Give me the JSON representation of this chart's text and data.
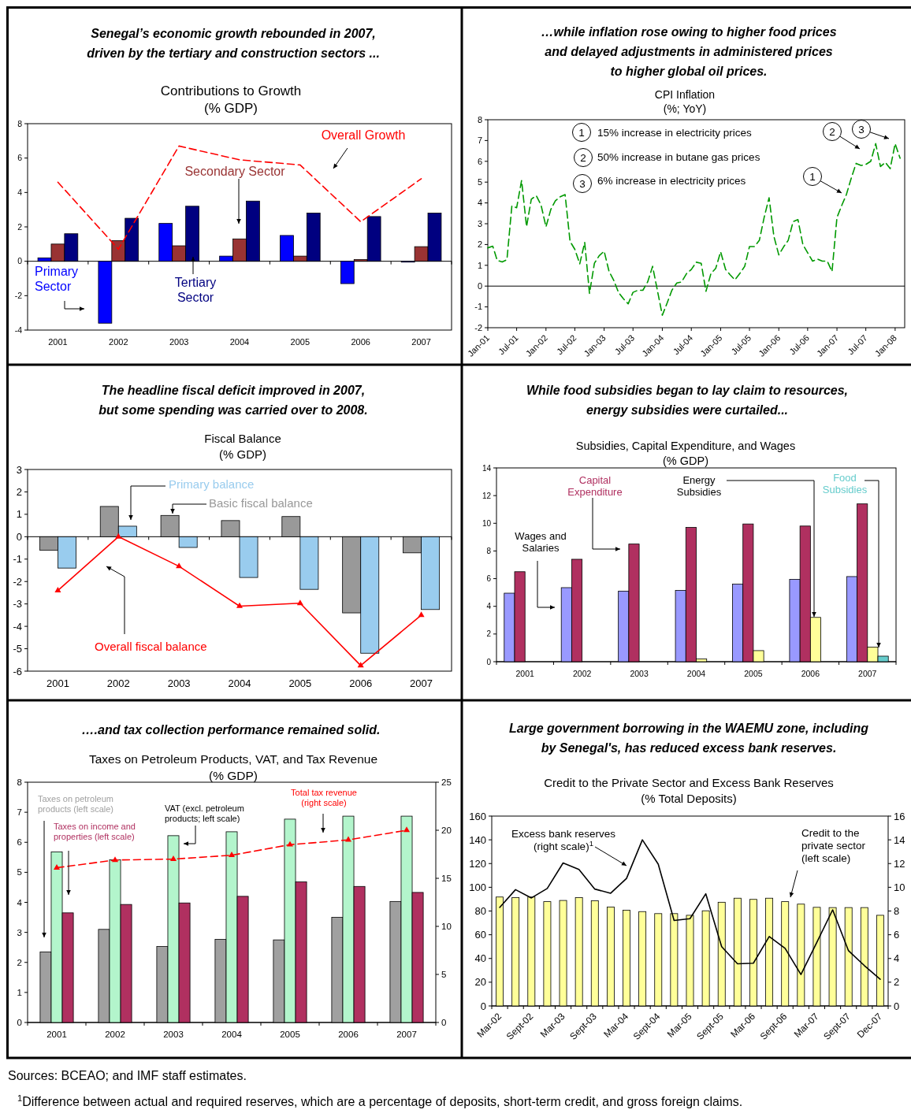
{
  "chart_data": [
    {
      "type": "bar",
      "title": "Senegal’s economic growth rebounded in 2007,\ndriven by the tertiary and construction sectors ...",
      "subtitle": "Contributions to Growth\n(% GDP)",
      "categories": [
        "2001",
        "2002",
        "2003",
        "2004",
        "2005",
        "2006",
        "2007"
      ],
      "ylim": [
        -4,
        8
      ],
      "yticks": [
        -4,
        -2,
        0,
        2,
        4,
        6,
        8
      ],
      "line_style": "dashed",
      "legend": "bottom left",
      "series": [
        {
          "name": "Primary\nSector",
          "color": "#0000ff",
          "values": [
            0.2,
            -3.6,
            2.2,
            0.3,
            1.5,
            -1.3,
            -0.05
          ]
        },
        {
          "name": "Secondary Sector",
          "color": "#993333",
          "values": [
            1.0,
            1.2,
            0.9,
            1.3,
            0.3,
            0.1,
            0.85
          ]
        },
        {
          "name": "Tertiary\nSector",
          "color": "#000080",
          "values": [
            1.6,
            2.5,
            3.2,
            3.5,
            2.8,
            2.6,
            2.8
          ]
        },
        {
          "name": "Overall Growth",
          "type": "line",
          "color": "#ff0000",
          "values": [
            4.6,
            0.7,
            6.7,
            5.9,
            5.6,
            2.3,
            4.8
          ]
        }
      ]
    },
    {
      "type": "line",
      "title": "…while inflation rose owing to higher food prices\nand delayed adjustments in administered prices\nto higher global oil prices.",
      "subtitle": "CPI Inflation\n(%; YoY)",
      "line_style": "dashed",
      "xlim": [
        "2001-01",
        "2008-03"
      ],
      "ylim": [
        -2,
        8
      ],
      "yticks": [
        -2,
        -1,
        0,
        1,
        2,
        3,
        4,
        5,
        6,
        7,
        8
      ],
      "xticks": [
        {
          "value": "2001-01",
          "label": "Jan-01"
        },
        {
          "value": "2001-07",
          "label": "Jul-01"
        },
        {
          "value": "2002-01",
          "label": "Jan-02"
        },
        {
          "value": "2002-07",
          "label": "Jul-02"
        },
        {
          "value": "2003-01",
          "label": "Jan-03"
        },
        {
          "value": "2003-07",
          "label": "Jul-03"
        },
        {
          "value": "2004-01",
          "label": "Jan-04"
        },
        {
          "value": "2004-07",
          "label": "Jul-04"
        },
        {
          "value": "2005-01",
          "label": "Jan-05"
        },
        {
          "value": "2005-07",
          "label": "Jul-05"
        },
        {
          "value": "2006-01",
          "label": "Jan-06"
        },
        {
          "value": "2006-07",
          "label": "Jul-06"
        },
        {
          "value": "2007-01",
          "label": "Jan-07"
        },
        {
          "value": "2007-07",
          "label": "Jul-07"
        },
        {
          "value": "2008-01",
          "label": "Jan-08"
        }
      ],
      "x": [
        "2001-01",
        "2001-02",
        "2001-03",
        "2001-04",
        "2001-05",
        "2001-06",
        "2001-07",
        "2001-08",
        "2001-09",
        "2001-10",
        "2001-11",
        "2001-12",
        "2002-01",
        "2002-02",
        "2002-03",
        "2002-04",
        "2002-05",
        "2002-06",
        "2002-07",
        "2002-08",
        "2002-09",
        "2002-10",
        "2002-11",
        "2002-12",
        "2003-01",
        "2003-02",
        "2003-03",
        "2003-04",
        "2003-05",
        "2003-06",
        "2003-07",
        "2003-08",
        "2003-09",
        "2003-10",
        "2003-11",
        "2003-12",
        "2004-01",
        "2004-02",
        "2004-03",
        "2004-04",
        "2004-05",
        "2004-06",
        "2004-07",
        "2004-08",
        "2004-09",
        "2004-10",
        "2004-11",
        "2004-12",
        "2005-01",
        "2005-02",
        "2005-03",
        "2005-04",
        "2005-05",
        "2005-06",
        "2005-07",
        "2005-08",
        "2005-09",
        "2005-10",
        "2005-11",
        "2005-12",
        "2006-01",
        "2006-02",
        "2006-03",
        "2006-04",
        "2006-05",
        "2006-06",
        "2006-07",
        "2006-08",
        "2006-09",
        "2006-10",
        "2006-11",
        "2006-12",
        "2007-01",
        "2007-02",
        "2007-03",
        "2007-04",
        "2007-05",
        "2007-06",
        "2007-07",
        "2007-08",
        "2007-09",
        "2007-10",
        "2007-11",
        "2007-12",
        "2008-01",
        "2008-02"
      ],
      "series": [
        {
          "color": "#009900",
          "values": [
            1.84,
            1.92,
            1.24,
            1.16,
            1.27,
            3.86,
            3.77,
            5.08,
            2.86,
            4.18,
            4.35,
            3.9,
            2.85,
            3.7,
            4.1,
            4.3,
            4.4,
            2.15,
            1.77,
            1.07,
            2.1,
            -0.35,
            1.1,
            1.46,
            1.68,
            0.7,
            0.3,
            -0.3,
            -0.6,
            -0.85,
            -0.3,
            -0.2,
            -0.2,
            0.2,
            0.95,
            -0.2,
            -1.4,
            -0.8,
            -0.2,
            0.15,
            0.2,
            0.6,
            0.8,
            1.15,
            1.1,
            -0.25,
            0.6,
            0.85,
            1.65,
            0.8,
            0.55,
            0.3,
            0.6,
            0.95,
            1.9,
            1.9,
            2.2,
            3.3,
            4.25,
            2.4,
            1.5,
            1.9,
            2.2,
            3.1,
            3.2,
            2.0,
            1.6,
            1.2,
            1.3,
            1.2,
            1.2,
            0.7,
            3.3,
            3.9,
            4.4,
            5.2,
            5.9,
            5.8,
            5.85,
            6.0,
            6.85,
            5.75,
            5.95,
            5.65,
            6.85,
            6.15
          ]
        }
      ],
      "annotations": [
        "15% increase in electricity prices",
        "50% increase in butane gas prices",
        "6% increase in electricity prices",
        "1",
        "2",
        "3"
      ]
    },
    {
      "type": "bar",
      "title": "The headline fiscal deficit improved in 2007,\nbut some spending was carried over to 2008.",
      "subtitle": "Fiscal Balance\n(% GDP)",
      "categories": [
        "2001",
        "2002",
        "2003",
        "2004",
        "2005",
        "2006",
        "2007"
      ],
      "ylim": [
        -6,
        3
      ],
      "yticks": [
        -6,
        -5,
        -4,
        -3,
        -2,
        -1,
        0,
        1,
        2,
        3
      ],
      "marker": "triangle",
      "line_style": "solid",
      "series": [
        {
          "name": "Basic fiscal balance",
          "color": "#999999",
          "values": [
            -0.6,
            1.35,
            0.95,
            0.72,
            0.9,
            -3.4,
            -0.72
          ]
        },
        {
          "name": "Primary balance",
          "color": "#99ccee",
          "values": [
            -1.4,
            0.47,
            -0.48,
            -1.82,
            -2.35,
            -5.2,
            -3.25
          ]
        },
        {
          "name": "Overall fiscal balance",
          "type": "line",
          "color": "#ff0000",
          "values": [
            -2.4,
            0.0,
            -1.32,
            -3.1,
            -2.97,
            -5.75,
            -3.5
          ]
        }
      ]
    },
    {
      "type": "bar",
      "title": "While food subsidies began to lay claim to resources,\nenergy subsidies were curtailed...",
      "subtitle": "Subsidies, Capital Expenditure, and Wages\n(% GDP)",
      "categories": [
        "2001",
        "2002",
        "2003",
        "2004",
        "2005",
        "2006",
        "2007"
      ],
      "ylim": [
        0,
        14
      ],
      "yticks": [
        0,
        2,
        4,
        6,
        8,
        10,
        12,
        14
      ],
      "series": [
        {
          "name": "Wages and\nSalaries",
          "color": "#9999ff",
          "values": [
            4.95,
            5.35,
            5.1,
            5.15,
            5.6,
            5.95,
            6.15
          ]
        },
        {
          "name": "Capital\nExpenditure",
          "color": "#b03060",
          "values": [
            6.5,
            7.4,
            8.5,
            9.7,
            9.95,
            9.8,
            11.4
          ]
        },
        {
          "name": "Energy\nSubsidies",
          "color": "#ffff99",
          "values": [
            null,
            null,
            null,
            0.2,
            0.8,
            3.2,
            1.05
          ]
        },
        {
          "name": "Food\nSubsidies",
          "color": "#66cccc",
          "values": [
            null,
            null,
            null,
            null,
            null,
            null,
            0.4
          ]
        }
      ]
    },
    {
      "type": "bar",
      "title": "….and tax collection performance remained solid.",
      "subtitle": "Taxes on Petroleum Products, VAT, and Tax Revenue\n(% GDP)",
      "categories": [
        "2001",
        "2002",
        "2003",
        "2004",
        "2005",
        "2006",
        "2007"
      ],
      "ylim": [
        0,
        8
      ],
      "yticks": [
        0,
        1,
        2,
        3,
        4,
        5,
        6,
        7,
        8
      ],
      "y2lim": [
        0,
        25
      ],
      "y2ticks": [
        0,
        5,
        10,
        15,
        20,
        25
      ],
      "marker": "triangle",
      "line_style": "dashed",
      "series": [
        {
          "name": "Taxes on petroleum\nproducts (left scale)",
          "color": "#a0a0a0",
          "values": [
            2.35,
            3.1,
            2.53,
            2.77,
            2.75,
            3.5,
            4.03
          ]
        },
        {
          "name": "VAT (excl. petroleum\nproducts; left scale)",
          "color": "#b3f5cc",
          "values": [
            5.68,
            5.42,
            6.22,
            6.35,
            6.77,
            6.87,
            6.87
          ]
        },
        {
          "name": "Taxes on income and\nproperties (left scale)",
          "color": "#b03060",
          "values": [
            3.65,
            3.93,
            3.98,
            4.2,
            4.68,
            4.53,
            4.33
          ]
        },
        {
          "name": "Total tax revenue\n(right scale)",
          "type": "line",
          "axis": "y2",
          "color": "#ff0000",
          "values": [
            16.1,
            16.9,
            17.0,
            17.4,
            18.5,
            19.0,
            20.0
          ]
        }
      ]
    },
    {
      "type": "bar",
      "title": "Large government borrowing in the WAEMU zone, including\nby Senegal's, has reduced excess bank reserves.",
      "subtitle": "Credit to the Private Sector and Excess Bank Reserves\n(% Total Deposits)",
      "categories": [
        "Mar-02",
        null,
        "Sept-02",
        null,
        "Mar-03",
        null,
        "Sept-03",
        null,
        "Mar-04",
        null,
        "Sept-04",
        null,
        "Mar-05",
        null,
        "Sept-05",
        null,
        "Mar-06",
        null,
        "Sept-06",
        null,
        "Mar-07",
        null,
        "Sept-07",
        null,
        "Dec-07"
      ],
      "ylim": [
        0,
        160
      ],
      "yticks": [
        0,
        20,
        40,
        60,
        80,
        100,
        120,
        140,
        160
      ],
      "y2lim": [
        0,
        16
      ],
      "y2ticks": [
        0,
        2,
        4,
        6,
        8,
        10,
        12,
        14,
        16
      ],
      "line_style": "solid",
      "series": [
        {
          "name": "Credit to the\nprivate sector\n(left scale)",
          "color": "#ffff99",
          "values": [
            91.8,
            91.3,
            91.8,
            87.9,
            88.9,
            91.3,
            88.6,
            83.4,
            80.7,
            79.5,
            77.8,
            77.8,
            76.4,
            80.2,
            87.4,
            90.8,
            89.8,
            90.8,
            87.9,
            85.8,
            83.1,
            82.9,
            82.9,
            82.9,
            76.4
          ]
        },
        {
          "name": "Excess bank reserves\n(right scale)$^{1}$",
          "type": "line",
          "axis": "y2",
          "color": "#000000",
          "values": [
            8.3,
            9.8,
            9.1,
            9.9,
            12.05,
            11.5,
            9.85,
            9.5,
            10.75,
            14.0,
            11.95,
            7.2,
            7.35,
            9.45,
            5.0,
            3.55,
            3.6,
            5.85,
            4.85,
            2.65,
            5.35,
            8.1,
            4.65,
            3.4,
            2.25
          ]
        }
      ]
    },
    {
      "type": "other",
      "annotations": [
        "Sources: BCEAO; and IMF staff estimates.",
        "$^{1}$Difference between actual and required reserves, which are a percentage of deposits, short-term credit, and gross foreign claims."
      ]
    }
  ]
}
